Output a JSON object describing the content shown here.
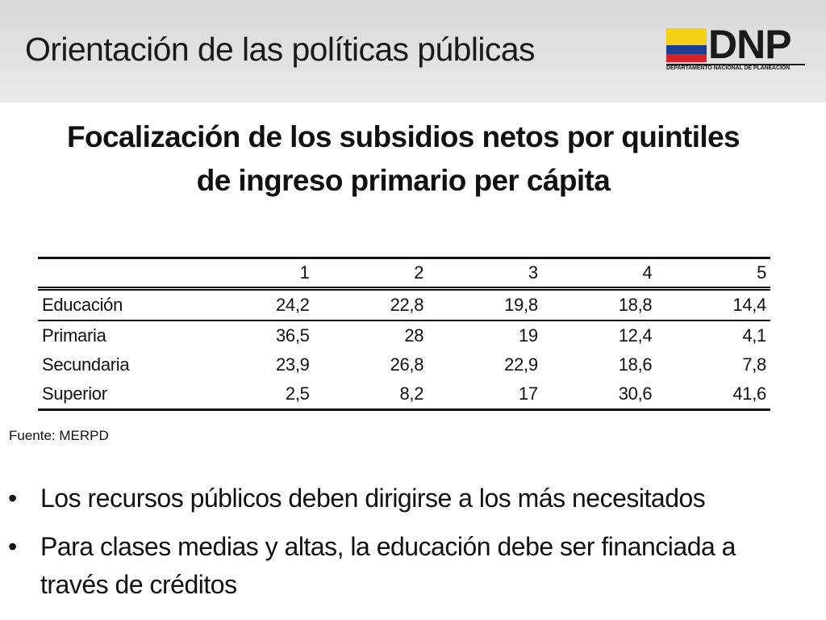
{
  "slide": {
    "title": "Orientación de las políticas públicas"
  },
  "logo": {
    "word": "DNP",
    "subtitle": "DEPARTAMENTO NACIONAL DE PLANEACIÓN",
    "flag_colors": [
      "#f7d117",
      "#1c3f94",
      "#d8232a"
    ]
  },
  "heading": {
    "line1": "Focalización de los subsidios netos por quintiles",
    "line2": "de ingreso primario per cápita"
  },
  "table": {
    "columns": [
      "",
      "1",
      "2",
      "3",
      "4",
      "5"
    ],
    "rows": [
      {
        "label": "Educación",
        "values": [
          "24,2",
          "22,8",
          "19,8",
          "18,8",
          "14,4"
        ]
      },
      {
        "label": "Primaria",
        "values": [
          "36,5",
          "28",
          "19",
          "12,4",
          "4,1"
        ]
      },
      {
        "label": "Secundaria",
        "values": [
          "23,9",
          "26,8",
          "22,9",
          "18,6",
          "7,8"
        ]
      },
      {
        "label": "Superior",
        "values": [
          "2,5",
          "8,2",
          "17",
          "30,6",
          "41,6"
        ]
      }
    ]
  },
  "source": "Fuente: MERPD",
  "bullets": [
    {
      "marker": "•",
      "text": "Los recursos públicos deben dirigirse a los más necesitados"
    },
    {
      "marker": "•",
      "text": "Para clases medias y altas, la educación debe ser financiada a través de créditos"
    }
  ]
}
